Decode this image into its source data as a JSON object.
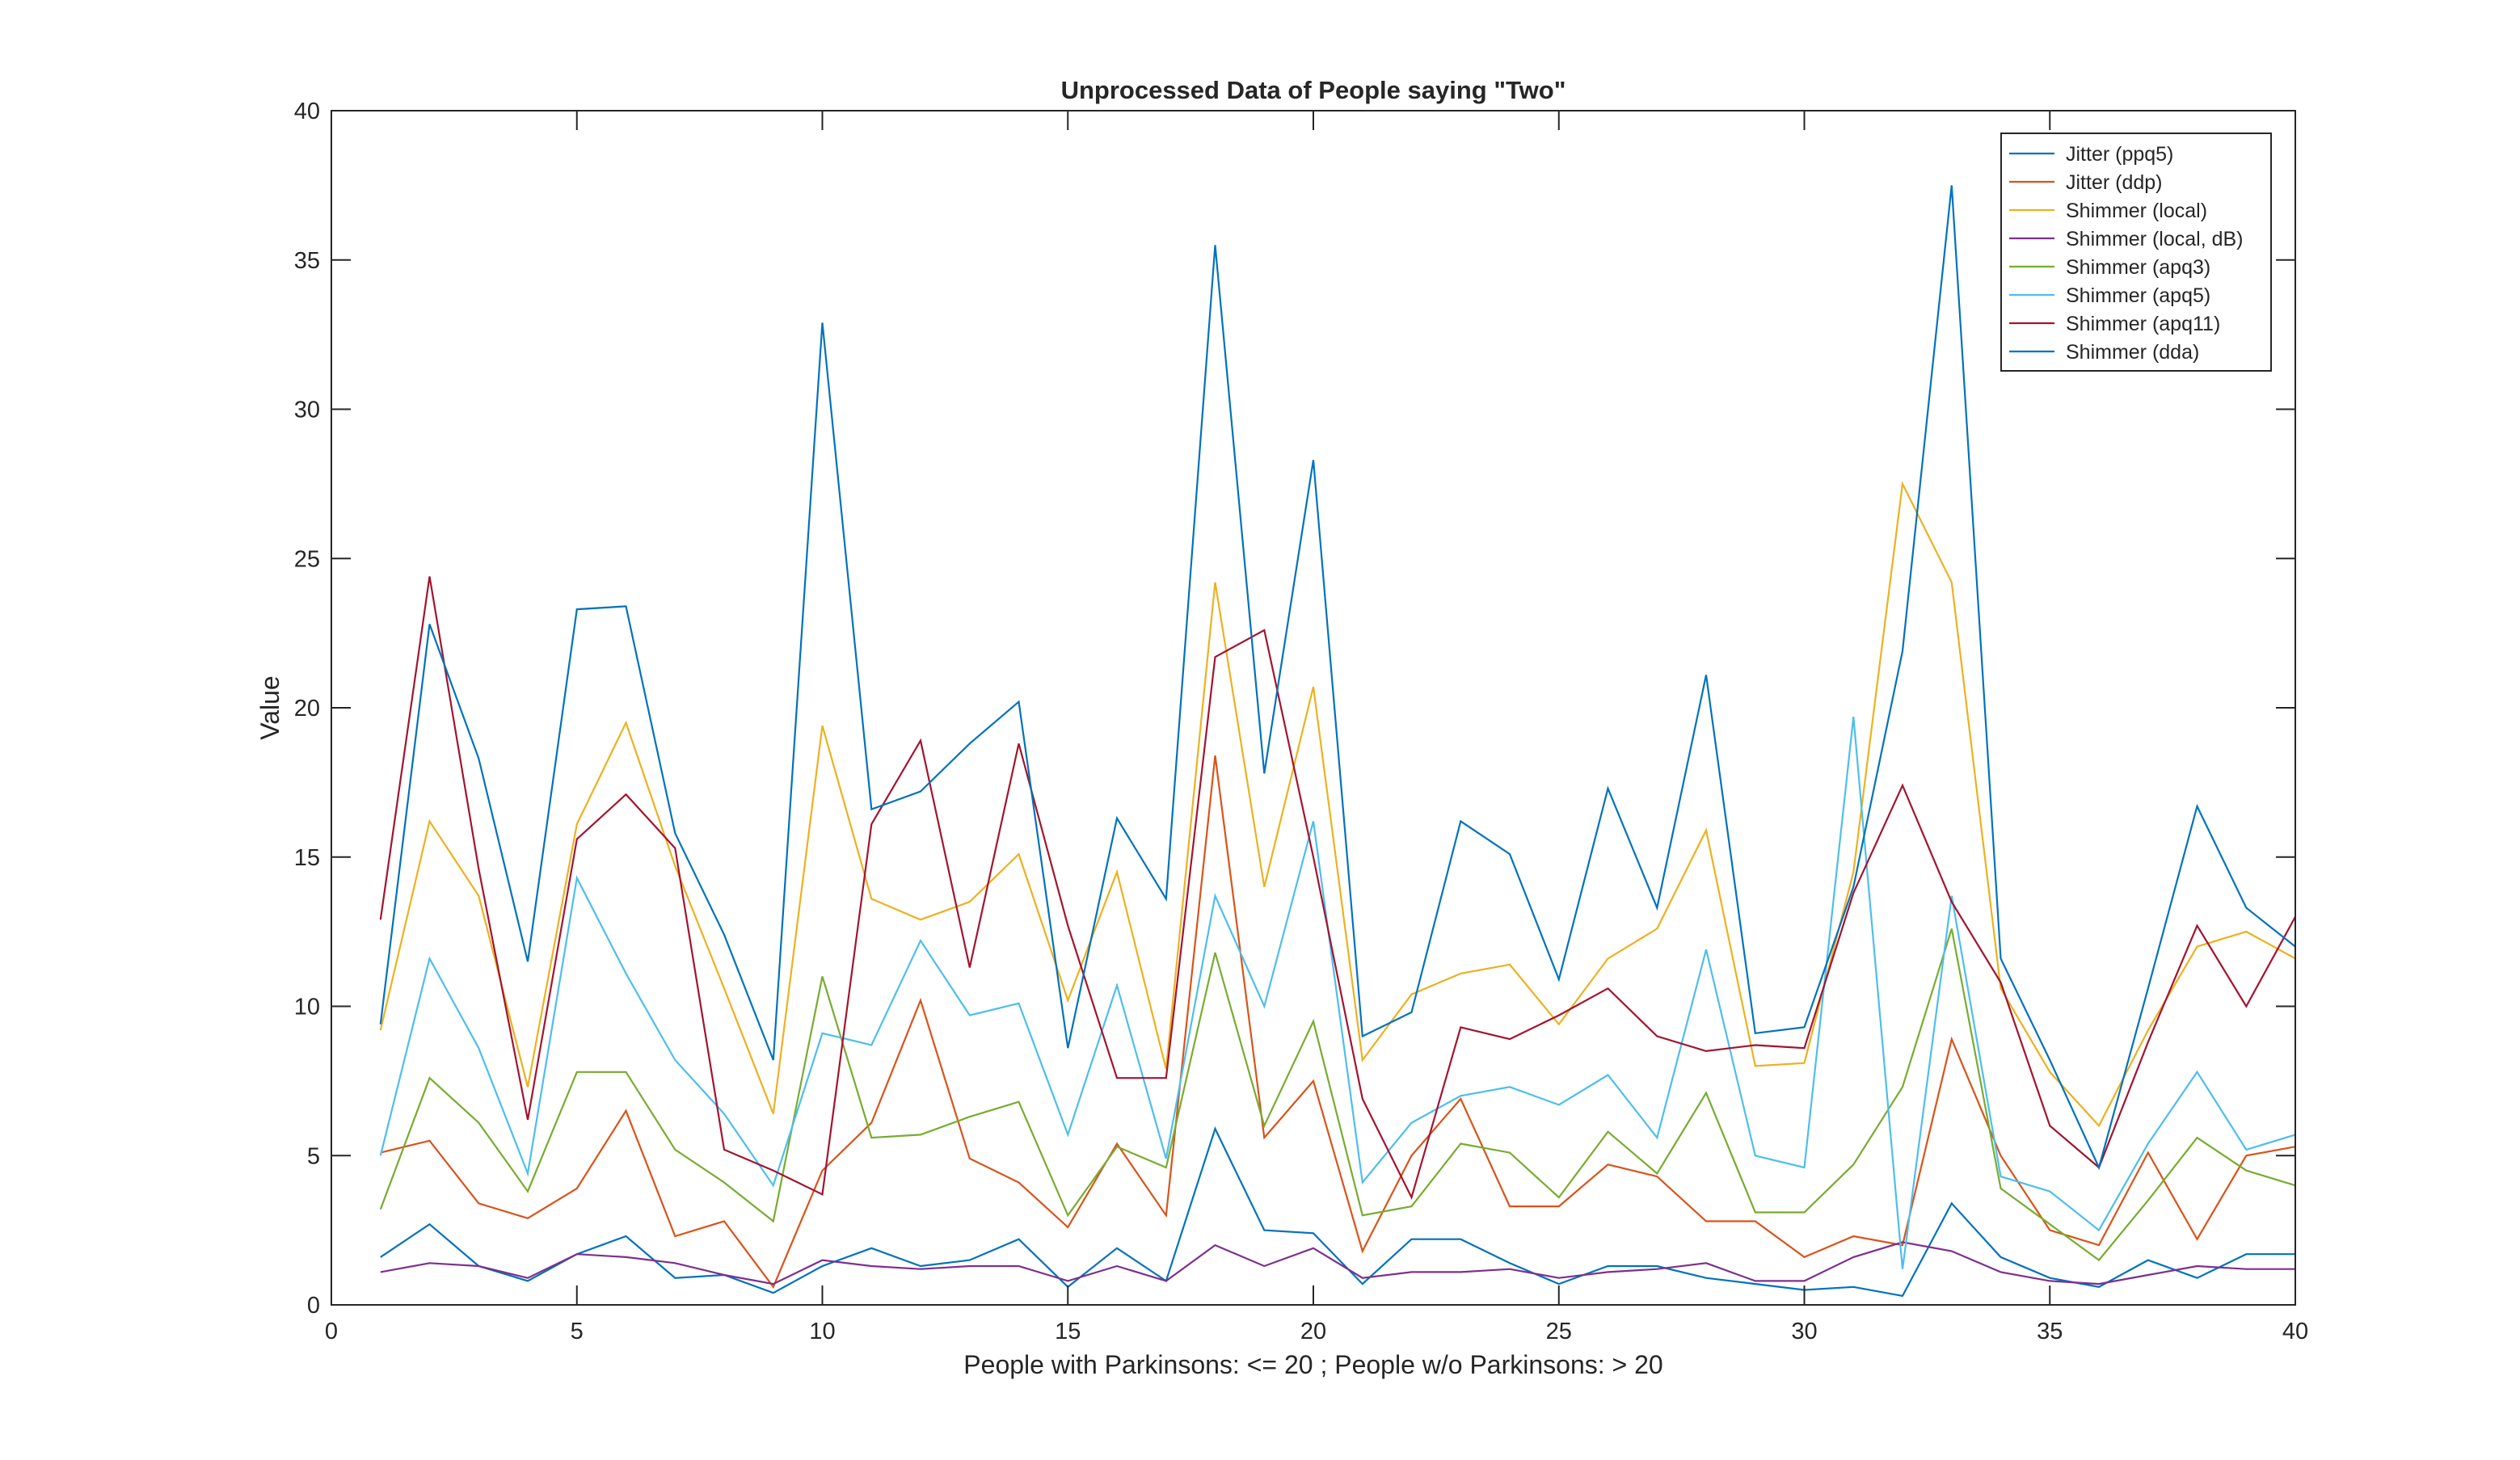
{
  "chart_data": {
    "type": "line",
    "title": "Unprocessed Data of People saying \"Two\"",
    "xlabel": "People with Parkinsons: <= 20 ; People w/o Parkinsons: > 20",
    "ylabel": "Value",
    "xlim": [
      0,
      40
    ],
    "ylim": [
      0,
      40
    ],
    "xticks": [
      0,
      5,
      10,
      15,
      20,
      25,
      30,
      35,
      40
    ],
    "yticks": [
      0,
      5,
      10,
      15,
      20,
      25,
      30,
      35,
      40
    ],
    "grid": false,
    "legend_position": "top-right",
    "x": [
      1,
      2,
      3,
      4,
      5,
      6,
      7,
      8,
      9,
      10,
      11,
      12,
      13,
      14,
      15,
      16,
      17,
      18,
      19,
      20,
      21,
      22,
      23,
      24,
      25,
      26,
      27,
      28,
      29,
      30,
      31,
      32,
      33,
      34,
      35,
      36,
      37,
      38,
      39,
      40
    ],
    "series": [
      {
        "name": "Jitter (ppq5)",
        "color": "#0072BD",
        "values": [
          1.6,
          2.7,
          1.3,
          0.8,
          1.7,
          2.3,
          0.9,
          1.0,
          0.4,
          1.3,
          1.9,
          1.3,
          1.5,
          2.2,
          0.6,
          1.9,
          0.8,
          5.9,
          2.5,
          2.4,
          0.7,
          2.2,
          2.2,
          1.4,
          0.7,
          1.3,
          1.3,
          0.9,
          0.7,
          0.5,
          0.6,
          0.3,
          3.4,
          1.6,
          0.9,
          0.6,
          1.5,
          0.9,
          1.7,
          1.7
        ]
      },
      {
        "name": "Jitter (ddp)",
        "color": "#D95319",
        "values": [
          5.1,
          5.5,
          3.4,
          2.9,
          3.9,
          6.5,
          2.3,
          2.8,
          0.6,
          4.5,
          6.1,
          10.2,
          4.9,
          4.1,
          2.6,
          5.4,
          3.0,
          18.4,
          5.6,
          7.5,
          1.8,
          5.0,
          6.9,
          3.3,
          3.3,
          4.7,
          4.3,
          2.8,
          2.8,
          1.6,
          2.3,
          2.0,
          8.9,
          5.0,
          2.5,
          2.0,
          5.1,
          2.2,
          5.0,
          5.3
        ]
      },
      {
        "name": "Shimmer (local)",
        "color": "#EDB120",
        "values": [
          9.2,
          16.2,
          13.7,
          7.3,
          16.1,
          19.5,
          14.7,
          10.6,
          6.4,
          19.4,
          13.6,
          12.9,
          13.5,
          15.1,
          10.2,
          14.5,
          7.9,
          24.2,
          14.0,
          20.7,
          8.2,
          10.4,
          11.1,
          11.4,
          9.4,
          11.6,
          12.6,
          15.9,
          8.0,
          8.1,
          14.5,
          27.5,
          24.2,
          10.6,
          7.8,
          6.0,
          9.2,
          12.0,
          12.5,
          11.6
        ]
      },
      {
        "name": "Shimmer (local, dB)",
        "color": "#7E2F8E",
        "values": [
          1.1,
          1.4,
          1.3,
          0.9,
          1.7,
          1.6,
          1.4,
          1.0,
          0.7,
          1.5,
          1.3,
          1.2,
          1.3,
          1.3,
          0.8,
          1.3,
          0.8,
          2.0,
          1.3,
          1.9,
          0.9,
          1.1,
          1.1,
          1.2,
          0.9,
          1.1,
          1.2,
          1.4,
          0.8,
          0.8,
          1.6,
          2.1,
          1.8,
          1.1,
          0.8,
          0.7,
          1.0,
          1.3,
          1.2,
          1.2
        ]
      },
      {
        "name": "Shimmer (apq3)",
        "color": "#77AC30",
        "values": [
          3.2,
          7.6,
          6.1,
          3.8,
          7.8,
          7.8,
          5.2,
          4.1,
          2.8,
          11.0,
          5.6,
          5.7,
          6.3,
          6.8,
          3.0,
          5.3,
          4.6,
          11.8,
          6.0,
          9.5,
          3.0,
          3.3,
          5.4,
          5.1,
          3.6,
          5.8,
          4.4,
          7.1,
          3.1,
          3.1,
          4.7,
          7.3,
          12.6,
          3.9,
          2.7,
          1.5,
          3.5,
          5.6,
          4.5,
          4.0
        ]
      },
      {
        "name": "Shimmer (apq5)",
        "color": "#4DBEEE",
        "values": [
          5.0,
          11.6,
          8.6,
          4.4,
          14.3,
          11.1,
          8.2,
          6.4,
          4.0,
          9.1,
          8.7,
          12.2,
          9.7,
          10.1,
          5.7,
          10.7,
          4.9,
          13.7,
          10.0,
          16.2,
          4.1,
          6.1,
          7.0,
          7.3,
          6.7,
          7.7,
          5.6,
          11.9,
          5.0,
          4.6,
          19.7,
          1.2,
          13.7,
          4.3,
          3.8,
          2.5,
          5.4,
          7.8,
          5.2,
          5.7
        ]
      },
      {
        "name": "Shimmer (apq11)",
        "color": "#A2142F",
        "values": [
          12.9,
          24.4,
          14.6,
          6.2,
          15.6,
          17.1,
          15.3,
          5.2,
          4.5,
          3.7,
          16.1,
          18.9,
          11.3,
          18.8,
          12.7,
          7.6,
          7.6,
          21.7,
          22.6,
          15.0,
          6.9,
          3.6,
          9.3,
          8.9,
          9.7,
          10.6,
          9.0,
          8.5,
          8.7,
          8.6,
          13.8,
          17.4,
          13.5,
          10.8,
          6.0,
          4.6,
          8.8,
          12.7,
          10.0,
          13.0
        ]
      },
      {
        "name": "Shimmer (dda)",
        "color": "#0072BD",
        "values": [
          9.4,
          22.8,
          18.3,
          11.5,
          23.3,
          23.4,
          15.8,
          12.4,
          8.2,
          32.9,
          16.6,
          17.2,
          18.8,
          20.2,
          8.6,
          16.3,
          13.6,
          35.5,
          17.8,
          28.3,
          9.0,
          9.8,
          16.2,
          15.1,
          10.9,
          17.3,
          13.3,
          21.1,
          9.1,
          9.3,
          14.0,
          21.9,
          37.5,
          11.6,
          8.2,
          4.6,
          10.6,
          16.7,
          13.3,
          12.0
        ]
      }
    ]
  }
}
